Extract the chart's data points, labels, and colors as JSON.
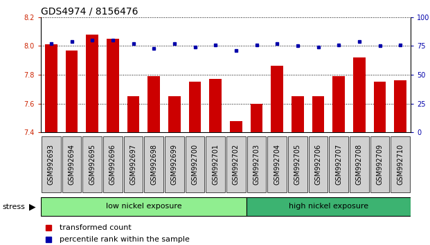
{
  "title": "GDS4974 / 8156476",
  "samples": [
    "GSM992693",
    "GSM992694",
    "GSM992695",
    "GSM992696",
    "GSM992697",
    "GSM992698",
    "GSM992699",
    "GSM992700",
    "GSM992701",
    "GSM992702",
    "GSM992703",
    "GSM992704",
    "GSM992705",
    "GSM992706",
    "GSM992707",
    "GSM992708",
    "GSM992709",
    "GSM992710"
  ],
  "red_values": [
    8.01,
    7.97,
    8.08,
    8.05,
    7.65,
    7.79,
    7.65,
    7.75,
    7.77,
    7.48,
    7.6,
    7.86,
    7.65,
    7.65,
    7.79,
    7.92,
    7.75,
    7.76
  ],
  "blue_values": [
    77,
    79,
    80,
    80,
    77,
    73,
    77,
    74,
    76,
    71,
    76,
    77,
    75,
    74,
    76,
    79,
    75,
    76
  ],
  "group_labels": [
    "low nickel exposure",
    "high nickel exposure"
  ],
  "group_split": 10,
  "group_colors": [
    "#90EE90",
    "#3CB371"
  ],
  "bar_color": "#CC0000",
  "dot_color": "#0000AA",
  "ylim_left": [
    7.4,
    8.2
  ],
  "ylim_right": [
    0,
    100
  ],
  "yticks_left": [
    7.4,
    7.6,
    7.8,
    8.0,
    8.2
  ],
  "yticks_right": [
    0,
    25,
    50,
    75,
    100
  ],
  "left_tick_color": "#CC2200",
  "right_tick_color": "#0000AA",
  "stress_label": "stress",
  "legend_labels": [
    "transformed count",
    "percentile rank within the sample"
  ],
  "legend_colors": [
    "#CC0000",
    "#0000AA"
  ],
  "bar_width": 0.6,
  "title_fontsize": 10,
  "tick_fontsize": 7,
  "label_fontsize": 8,
  "n_low": 10,
  "n_high": 8
}
